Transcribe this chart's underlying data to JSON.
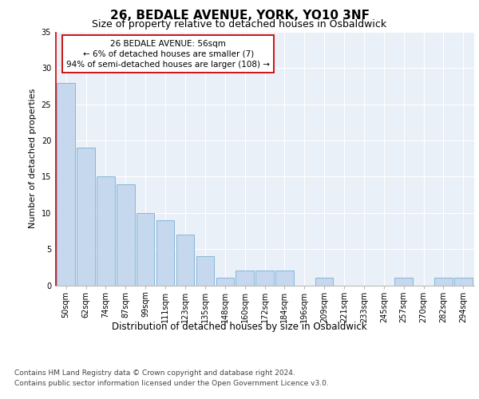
{
  "title": "26, BEDALE AVENUE, YORK, YO10 3NF",
  "subtitle": "Size of property relative to detached houses in Osbaldwick",
  "xlabel": "Distribution of detached houses by size in Osbaldwick",
  "ylabel": "Number of detached properties",
  "categories": [
    "50sqm",
    "62sqm",
    "74sqm",
    "87sqm",
    "99sqm",
    "111sqm",
    "123sqm",
    "135sqm",
    "148sqm",
    "160sqm",
    "172sqm",
    "184sqm",
    "196sqm",
    "209sqm",
    "221sqm",
    "233sqm",
    "245sqm",
    "257sqm",
    "270sqm",
    "282sqm",
    "294sqm"
  ],
  "values": [
    28,
    19,
    15,
    14,
    10,
    9,
    7,
    4,
    1,
    2,
    2,
    2,
    0,
    1,
    0,
    0,
    0,
    1,
    0,
    1,
    1
  ],
  "bar_color": "#c5d8ed",
  "bar_edge_color": "#7aafd4",
  "highlight_line_color": "#cc0000",
  "annotation_text": "26 BEDALE AVENUE: 56sqm\n← 6% of detached houses are smaller (7)\n94% of semi-detached houses are larger (108) →",
  "annotation_box_color": "#ffffff",
  "annotation_box_edge_color": "#cc0000",
  "ylim": [
    0,
    35
  ],
  "yticks": [
    0,
    5,
    10,
    15,
    20,
    25,
    30,
    35
  ],
  "bg_color": "#eaf0f8",
  "footer_line1": "Contains HM Land Registry data © Crown copyright and database right 2024.",
  "footer_line2": "Contains public sector information licensed under the Open Government Licence v3.0.",
  "title_fontsize": 11,
  "subtitle_fontsize": 9,
  "axis_label_fontsize": 8,
  "tick_fontsize": 7,
  "footer_fontsize": 6.5,
  "annotation_fontsize": 7.5
}
